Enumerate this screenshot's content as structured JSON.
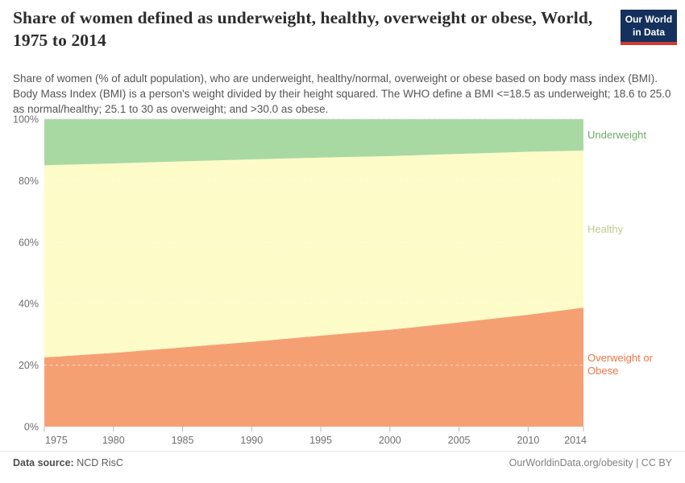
{
  "header": {
    "title": "Share of women defined as underweight, healthy, overweight or obese, World, 1975 to 2014",
    "subtitle": "Share of women (% of adult population), who are underweight, healthy/normal, overweight or obese based on body mass index (BMI). Body Mass Index (BMI) is a person's weight divided by their height squared. The WHO define a BMI <=18.5 as underweight; 18.6 to 25.0 as normal/healthy; 25.1 to 30 as overweight; and >30.0 as obese.",
    "logo": {
      "line1": "Our World",
      "line2": "in Data",
      "bg_color": "#14305c",
      "accent_color": "#cf3b34"
    }
  },
  "chart_data": {
    "type": "area",
    "stacked": true,
    "title": "Share of women defined as underweight, healthy, overweight or obese, World, 1975 to 2014",
    "x": [
      1975,
      1980,
      1985,
      1990,
      1995,
      2000,
      2005,
      2010,
      2014
    ],
    "series": [
      {
        "name": "Overweight or Obese",
        "color": "#f5a073",
        "label_color": "#ee7445",
        "values": [
          22.5,
          24.0,
          25.8,
          27.6,
          29.6,
          31.5,
          33.9,
          36.4,
          38.7
        ]
      },
      {
        "name": "Healthy",
        "color": "#fdfbc7",
        "label_color": "#c2ca8c",
        "values": [
          62.5,
          61.6,
          60.5,
          59.3,
          57.9,
          56.5,
          54.8,
          53.0,
          51.1
        ]
      },
      {
        "name": "Underweight",
        "color": "#a8d9a2",
        "label_color": "#6faa68",
        "values": [
          15.0,
          14.4,
          13.7,
          13.1,
          12.5,
          12.0,
          11.3,
          10.6,
          10.2
        ]
      }
    ],
    "x_tick_labels": [
      "1975",
      "1980",
      "1985",
      "1990",
      "1995",
      "2000",
      "2005",
      "2010",
      "2014"
    ],
    "y_ticks": [
      0,
      20,
      40,
      60,
      80,
      100
    ],
    "y_tick_labels": [
      "0%",
      "20%",
      "40%",
      "60%",
      "80%",
      "100%"
    ],
    "xlim": [
      1975,
      2014
    ],
    "ylim": [
      0,
      100
    ],
    "grid": "dashed horizontal",
    "legend_position": "right-of-plot",
    "xlabel": "",
    "ylabel": ""
  },
  "footer": {
    "source_label": "Data source:",
    "source_value": "NCD RisC",
    "link_text": "OurWorldinData.org/obesity | CC BY"
  }
}
